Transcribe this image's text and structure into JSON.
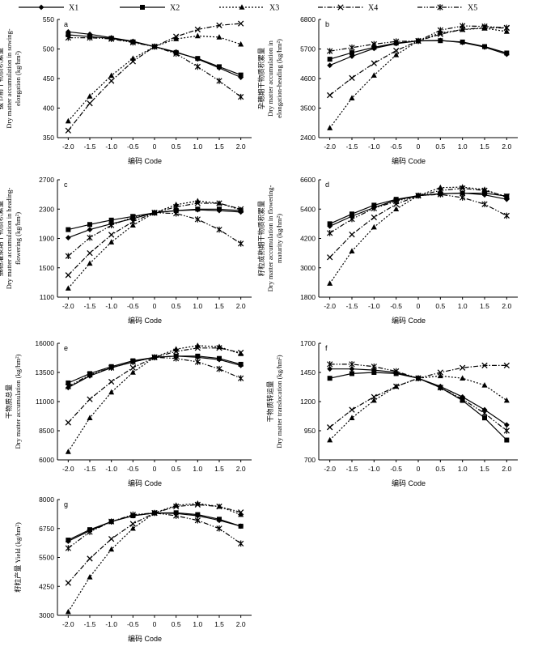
{
  "legend": {
    "items": [
      {
        "name": "X1",
        "marker": "diamond",
        "dash": "solid"
      },
      {
        "name": "X2",
        "marker": "square",
        "dash": "solid"
      },
      {
        "name": "X3",
        "marker": "triangle",
        "dash": "dot"
      },
      {
        "name": "X4",
        "marker": "x",
        "dash": "dashdot"
      },
      {
        "name": "X5",
        "marker": "star",
        "dash": "dashdotdot"
      }
    ]
  },
  "chart_data": [
    {
      "type": "line",
      "panel_label": "a",
      "ylabel_lines": [
        "拔节前干物质积累量",
        "Dry matter accumulation in sowing-",
        "elongation (kg/hm²)"
      ],
      "xlabel": "编码 Code",
      "x": [
        -2.0,
        -1.5,
        -1.0,
        -0.5,
        0,
        0.5,
        1.0,
        1.5,
        2.0
      ],
      "x_tick_labels": [
        "-2.0",
        "-1.5",
        "-1.0",
        "-0.5",
        "0",
        "0.5",
        "1.0",
        "1.5",
        "2.0"
      ],
      "ylim": [
        350,
        550
      ],
      "yticks": [
        350,
        400,
        450,
        500,
        550
      ],
      "series": [
        {
          "name": "X1",
          "values": [
            529,
            525,
            519,
            513,
            504,
            495,
            483,
            468,
            452
          ]
        },
        {
          "name": "X2",
          "values": [
            524,
            521,
            518,
            512,
            504,
            494,
            484,
            470,
            456
          ]
        },
        {
          "name": "X3",
          "values": [
            378,
            420,
            455,
            484,
            504,
            517,
            522,
            520,
            508
          ]
        },
        {
          "name": "X4",
          "values": [
            362,
            408,
            446,
            479,
            504,
            521,
            533,
            540,
            543
          ]
        },
        {
          "name": "X5",
          "values": [
            519,
            519,
            517,
            511,
            504,
            492,
            470,
            446,
            419
          ]
        }
      ]
    },
    {
      "type": "line",
      "panel_label": "b",
      "ylabel_lines": [
        "孕穗期干物质积累量",
        "Dry matter accumulation in",
        "elongation-heading (kg/hm²)"
      ],
      "xlabel": "编码 Code",
      "x": [
        -2.0,
        -1.5,
        -1.0,
        -0.5,
        0,
        0.5,
        1.0,
        1.5,
        2.0
      ],
      "x_tick_labels": [
        "-2.0",
        "-1.5",
        "-1.0",
        "-0.5",
        "0",
        "0.5",
        "1.0",
        "1.5",
        "2.0"
      ],
      "ylim": [
        2400,
        6800
      ],
      "yticks": [
        2400,
        3500,
        4600,
        5700,
        6800
      ],
      "series": [
        {
          "name": "X1",
          "values": [
            5090,
            5430,
            5720,
            5900,
            6000,
            6020,
            5940,
            5770,
            5500
          ]
        },
        {
          "name": "X2",
          "values": [
            5320,
            5560,
            5760,
            5920,
            6000,
            6010,
            5960,
            5790,
            5550
          ]
        },
        {
          "name": "X3",
          "values": [
            2760,
            3870,
            4720,
            5480,
            6000,
            6300,
            6420,
            6470,
            6350
          ]
        },
        {
          "name": "X4",
          "values": [
            3980,
            4620,
            5170,
            5640,
            6000,
            6250,
            6430,
            6490,
            6480
          ]
        },
        {
          "name": "X5",
          "values": [
            5620,
            5750,
            5880,
            5980,
            6000,
            6400,
            6560,
            6540,
            6490
          ]
        }
      ]
    },
    {
      "type": "line",
      "panel_label": "c",
      "ylabel_lines": [
        "抽穗灌浆期干物质积累量",
        "Dry matter accumulation in heading-",
        "flowering (kg/hm²)"
      ],
      "xlabel": "编码 Code",
      "x": [
        -2.0,
        -1.5,
        -1.0,
        -0.5,
        0,
        0.5,
        1.0,
        1.5,
        2.0
      ],
      "x_tick_labels": [
        "-2.0",
        "-1.5",
        "-1.0",
        "-0.5",
        "0",
        "0.5",
        "1.0",
        "1.5",
        "2.0"
      ],
      "ylim": [
        1100,
        2700
      ],
      "yticks": [
        1100,
        1500,
        1900,
        2300,
        2700
      ],
      "series": [
        {
          "name": "X1",
          "values": [
            1910,
            2020,
            2100,
            2170,
            2250,
            2280,
            2290,
            2280,
            2260
          ]
        },
        {
          "name": "X2",
          "values": [
            2020,
            2090,
            2150,
            2200,
            2250,
            2280,
            2300,
            2300,
            2280
          ]
        },
        {
          "name": "X3",
          "values": [
            1220,
            1560,
            1850,
            2080,
            2250,
            2360,
            2410,
            2380,
            2290
          ]
        },
        {
          "name": "X4",
          "values": [
            1400,
            1700,
            1950,
            2130,
            2250,
            2330,
            2380,
            2380,
            2300
          ]
        },
        {
          "name": "X5",
          "values": [
            1660,
            1910,
            2080,
            2190,
            2250,
            2240,
            2160,
            2020,
            1830
          ]
        }
      ]
    },
    {
      "type": "line",
      "panel_label": "d",
      "ylabel_lines": [
        "籽粒成熟期干物质积累量",
        "Dry matter accumulation in flowering-",
        "maturity (kg/hm²)"
      ],
      "xlabel": "编码 Code",
      "x": [
        -2.0,
        -1.5,
        -1.0,
        -0.5,
        0,
        0.5,
        1.0,
        1.5,
        2.0
      ],
      "x_tick_labels": [
        "-2.0",
        "-1.5",
        "-1.0",
        "-0.5",
        "0",
        "0.5",
        "1.0",
        "1.5",
        "2.0"
      ],
      "ylim": [
        1800,
        6600
      ],
      "yticks": [
        1800,
        3000,
        4200,
        5400,
        6600
      ],
      "series": [
        {
          "name": "X1",
          "values": [
            4700,
            5110,
            5460,
            5770,
            5950,
            6020,
            6060,
            5980,
            5800
          ]
        },
        {
          "name": "X2",
          "values": [
            4800,
            5200,
            5560,
            5800,
            5950,
            6030,
            6050,
            6050,
            5930
          ]
        },
        {
          "name": "X3",
          "values": [
            2360,
            3680,
            4660,
            5400,
            5950,
            6280,
            6300,
            6200,
            5880
          ]
        },
        {
          "name": "X4",
          "values": [
            3430,
            4360,
            5060,
            5600,
            5950,
            6160,
            6250,
            6160,
            5920
          ]
        },
        {
          "name": "X5",
          "values": [
            4420,
            4990,
            5430,
            5720,
            5950,
            6000,
            5870,
            5600,
            5130
          ]
        }
      ]
    },
    {
      "type": "line",
      "panel_label": "e",
      "ylabel_lines": [
        "干物质总量",
        "Dry matter accumulation (kg/hm²)"
      ],
      "xlabel": "编码 Code",
      "x": [
        -2.0,
        -1.5,
        -1.0,
        -0.5,
        0,
        0.5,
        1.0,
        1.5,
        2.0
      ],
      "x_tick_labels": [
        "-2.0",
        "-1.5",
        "-1.0",
        "-0.5",
        "0",
        "0.5",
        "1.0",
        "1.5",
        "2.0"
      ],
      "ylim": [
        6000,
        16000
      ],
      "yticks": [
        6000,
        8500,
        11000,
        13500,
        16000
      ],
      "series": [
        {
          "name": "X1",
          "values": [
            12200,
            13200,
            13900,
            14400,
            14800,
            14900,
            14800,
            14600,
            14100
          ]
        },
        {
          "name": "X2",
          "values": [
            12600,
            13400,
            14000,
            14500,
            14800,
            14900,
            14900,
            14700,
            14200
          ]
        },
        {
          "name": "X3",
          "values": [
            6700,
            9600,
            11800,
            13500,
            14800,
            15500,
            15800,
            15700,
            15100
          ]
        },
        {
          "name": "X4",
          "values": [
            9200,
            11200,
            12700,
            13900,
            14800,
            15300,
            15600,
            15600,
            15200
          ]
        },
        {
          "name": "X5",
          "values": [
            12300,
            13300,
            13900,
            14400,
            14800,
            14700,
            14400,
            13800,
            13000
          ]
        }
      ]
    },
    {
      "type": "line",
      "panel_label": "f",
      "ylabel_lines": [
        "干物质转运量",
        "Dry matter translocation (kg/hm²)"
      ],
      "xlabel": "编码 Code",
      "x": [
        -2.0,
        -1.5,
        -1.0,
        -0.5,
        0,
        0.5,
        1.0,
        1.5,
        2.0
      ],
      "x_tick_labels": [
        "-2.0",
        "-1.5",
        "-1.0",
        "-0.5",
        "0",
        "0.5",
        "1.0",
        "1.5",
        "2.0"
      ],
      "ylim": [
        700,
        1700
      ],
      "yticks": [
        700,
        950,
        1200,
        1450,
        1700
      ],
      "series": [
        {
          "name": "X1",
          "values": [
            1480,
            1480,
            1470,
            1450,
            1400,
            1330,
            1240,
            1130,
            1000
          ]
        },
        {
          "name": "X2",
          "values": [
            1400,
            1440,
            1450,
            1440,
            1400,
            1320,
            1210,
            1060,
            870
          ]
        },
        {
          "name": "X3",
          "values": [
            870,
            1060,
            1210,
            1330,
            1400,
            1420,
            1400,
            1340,
            1210
          ]
        },
        {
          "name": "X4",
          "values": [
            980,
            1130,
            1240,
            1330,
            1400,
            1450,
            1490,
            1510,
            1510
          ]
        },
        {
          "name": "X5",
          "values": [
            1520,
            1520,
            1500,
            1460,
            1400,
            1320,
            1220,
            1100,
            950
          ]
        }
      ]
    },
    {
      "type": "line",
      "panel_label": "g",
      "ylabel_lines": [
        "籽粒产量 Yield (kg/hm²)"
      ],
      "xlabel": "编码 Code",
      "x": [
        -2.0,
        -1.5,
        -1.0,
        -0.5,
        0,
        0.5,
        1.0,
        1.5,
        2.0
      ],
      "x_tick_labels": [
        "-2.0",
        "-1.5",
        "-1.0",
        "-0.5",
        "0",
        "0.5",
        "1.0",
        "1.5",
        "2.0"
      ],
      "ylim": [
        3000,
        8000
      ],
      "yticks": [
        3000,
        4250,
        5500,
        6750,
        8000
      ],
      "series": [
        {
          "name": "X1",
          "values": [
            6200,
            6650,
            7050,
            7300,
            7420,
            7400,
            7300,
            7100,
            6850
          ]
        },
        {
          "name": "X2",
          "values": [
            6250,
            6700,
            7050,
            7300,
            7420,
            7430,
            7350,
            7150,
            6850
          ]
        },
        {
          "name": "X3",
          "values": [
            3150,
            4650,
            5850,
            6750,
            7420,
            7750,
            7830,
            7700,
            7350
          ]
        },
        {
          "name": "X4",
          "values": [
            4400,
            5450,
            6300,
            6950,
            7420,
            7700,
            7780,
            7700,
            7450
          ]
        },
        {
          "name": "X5",
          "values": [
            5900,
            6600,
            7050,
            7350,
            7420,
            7300,
            7100,
            6750,
            6100
          ]
        }
      ]
    }
  ]
}
